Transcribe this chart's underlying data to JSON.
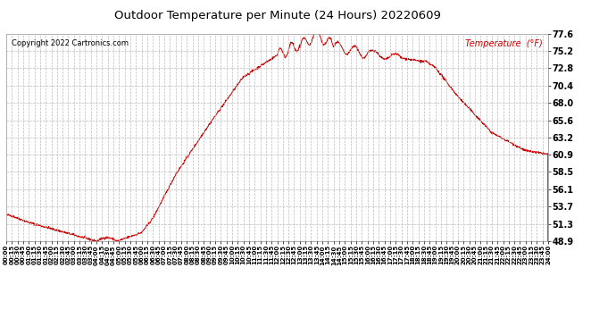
{
  "title": "Outdoor Temperature per Minute (24 Hours) 20220609",
  "copyright_text": "Copyright 2022 Cartronics.com",
  "legend_text": "Temperature  (°F)",
  "y_ticks": [
    48.9,
    51.3,
    53.7,
    56.1,
    58.5,
    60.9,
    63.2,
    65.6,
    68.0,
    70.4,
    72.8,
    75.2,
    77.6
  ],
  "ylim": [
    48.9,
    77.6
  ],
  "line_color": "#cc0000",
  "background_color": "#ffffff",
  "grid_color": "#bbbbbb",
  "title_color": "#000000",
  "copyright_color": "#000000",
  "legend_color": "#cc0000"
}
